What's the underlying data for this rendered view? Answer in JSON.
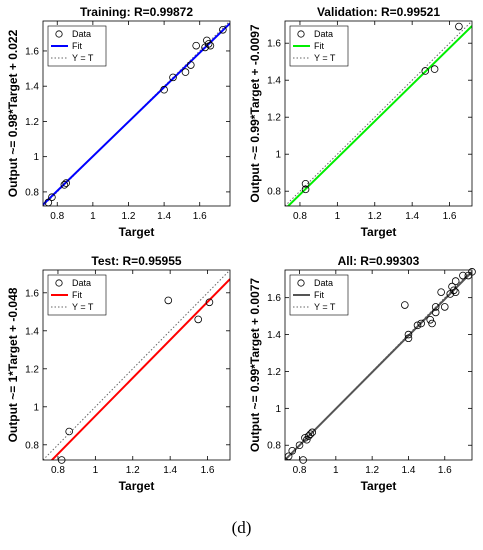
{
  "caption": "(d)",
  "chart_data": [
    {
      "type": "scatter",
      "title": "Training: R=0.99872",
      "xlabel": "Target",
      "ylabel": "Output ~= 0.98*Target + 0.022",
      "xlim": [
        0.72,
        1.77
      ],
      "ylim": [
        0.72,
        1.77
      ],
      "xticks": [
        "0.8",
        "1",
        "1.2",
        "1.4",
        "1.6"
      ],
      "yticks": [
        "0.8",
        "1",
        "1.2",
        "1.4",
        "1.6"
      ],
      "fit_color": "#0000ff",
      "fit": {
        "slope": 0.98,
        "intercept": 0.022
      },
      "legend": [
        "Data",
        "Fit",
        "Y = T"
      ],
      "legend_position": "top-left",
      "data": {
        "x": [
          0.75,
          0.77,
          0.84,
          0.85,
          1.4,
          1.45,
          1.52,
          1.55,
          1.58,
          1.63,
          1.64,
          1.65,
          1.66,
          1.73
        ],
        "y": [
          0.74,
          0.77,
          0.84,
          0.85,
          1.38,
          1.45,
          1.48,
          1.52,
          1.63,
          1.62,
          1.66,
          1.64,
          1.63,
          1.72
        ]
      }
    },
    {
      "type": "scatter",
      "title": "Validation: R=0.99521",
      "xlabel": "Target",
      "ylabel": "Output ~= 0.99*Target + -0.0097",
      "xlim": [
        0.72,
        1.72
      ],
      "ylim": [
        0.72,
        1.72
      ],
      "xticks": [
        "0.8",
        "1",
        "1.2",
        "1.4",
        "1.6"
      ],
      "yticks": [
        "0.8",
        "1",
        "1.2",
        "1.4",
        "1.6"
      ],
      "fit_color": "#00ee00",
      "fit": {
        "slope": 0.99,
        "intercept": -0.0097
      },
      "legend": [
        "Data",
        "Fit",
        "Y = T"
      ],
      "legend_position": "top-left",
      "data": {
        "x": [
          0.83,
          0.83,
          1.47,
          1.52,
          1.65
        ],
        "y": [
          0.81,
          0.84,
          1.45,
          1.46,
          1.69
        ]
      }
    },
    {
      "type": "scatter",
      "title": "Test: R=0.95955",
      "xlabel": "Target",
      "ylabel": "Output ~= 1*Target + -0.048",
      "xlim": [
        0.72,
        1.72
      ],
      "ylim": [
        0.72,
        1.72
      ],
      "xticks": [
        "0.8",
        "1",
        "1.2",
        "1.4",
        "1.6"
      ],
      "yticks": [
        "0.8",
        "1",
        "1.2",
        "1.4",
        "1.6"
      ],
      "fit_color": "#ff0000",
      "fit": {
        "slope": 1.0,
        "intercept": -0.048
      },
      "legend": [
        "Data",
        "Fit",
        "Y = T"
      ],
      "legend_position": "top-left",
      "data": {
        "x": [
          0.82,
          0.86,
          1.39,
          1.55,
          1.61
        ],
        "y": [
          0.72,
          0.87,
          1.56,
          1.46,
          1.55
        ]
      }
    },
    {
      "type": "scatter",
      "title": "All: R=0.99303",
      "xlabel": "Target",
      "ylabel": "Output ~= 0.99*Target + 0.0077",
      "xlim": [
        0.72,
        1.75
      ],
      "ylim": [
        0.72,
        1.75
      ],
      "xticks": [
        "0.8",
        "1",
        "1.2",
        "1.4",
        "1.6"
      ],
      "yticks": [
        "0.8",
        "1",
        "1.2",
        "1.4",
        "1.6"
      ],
      "fit_color": "#555555",
      "fit": {
        "slope": 0.99,
        "intercept": 0.0077
      },
      "legend": [
        "Data",
        "Fit",
        "Y = T"
      ],
      "legend_position": "top-left",
      "data": {
        "x": [
          0.74,
          0.76,
          0.8,
          0.82,
          0.83,
          0.84,
          0.85,
          0.86,
          0.87,
          1.38,
          1.4,
          1.4,
          1.45,
          1.47,
          1.52,
          1.53,
          1.55,
          1.55,
          1.58,
          1.6,
          1.63,
          1.64,
          1.65,
          1.66,
          1.66,
          1.7,
          1.73,
          1.75
        ],
        "y": [
          0.74,
          0.77,
          0.8,
          0.72,
          0.84,
          0.83,
          0.85,
          0.86,
          0.87,
          1.56,
          1.38,
          1.4,
          1.45,
          1.46,
          1.48,
          1.46,
          1.52,
          1.55,
          1.63,
          1.55,
          1.62,
          1.66,
          1.64,
          1.63,
          1.69,
          1.72,
          1.72,
          1.74
        ]
      }
    }
  ]
}
